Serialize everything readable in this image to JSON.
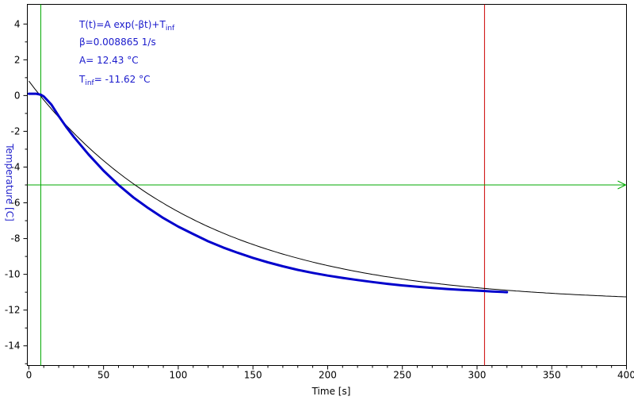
{
  "chart_data": {
    "type": "line",
    "xlabel": "Time [s]",
    "ylabel": "Temperature [C]",
    "xlim": [
      -1,
      400
    ],
    "ylim": [
      -15.1,
      5.1
    ],
    "xticks": [
      0,
      50,
      100,
      150,
      200,
      250,
      300,
      350,
      400
    ],
    "yticks": [
      4,
      2,
      0,
      -2,
      -4,
      -6,
      -8,
      -10,
      -12,
      -14
    ],
    "grid": false,
    "annotations": {
      "equation_main": "T(t)=A exp(-βt)+T",
      "equation_sub": "inf",
      "beta": "β=0.008865 1/s",
      "amplitude": "A= 12.43 °C",
      "tinf_label": "T",
      "tinf_sub": "inf",
      "tinf_value": "= -11.62 °C"
    },
    "fit_model": {
      "A": 12.43,
      "beta": 0.008865,
      "T_inf": -11.62,
      "t_start": 0,
      "t_end": 400
    },
    "series": [
      {
        "color": "#0000cc",
        "x": [
          0,
          5,
          8,
          10,
          15,
          20,
          25,
          30,
          40,
          50,
          60,
          70,
          80,
          90,
          100,
          110,
          120,
          130,
          140,
          150,
          160,
          170,
          180,
          190,
          200,
          210,
          220,
          230,
          240,
          250,
          260,
          270,
          280,
          290,
          300,
          305,
          310,
          320
        ],
        "y": [
          0.1,
          0.1,
          0.05,
          -0.05,
          -0.5,
          -1.15,
          -1.75,
          -2.3,
          -3.3,
          -4.2,
          -5.0,
          -5.7,
          -6.3,
          -6.85,
          -7.33,
          -7.75,
          -8.15,
          -8.5,
          -8.8,
          -9.08,
          -9.33,
          -9.55,
          -9.75,
          -9.92,
          -10.07,
          -10.2,
          -10.32,
          -10.43,
          -10.53,
          -10.62,
          -10.69,
          -10.76,
          -10.82,
          -10.87,
          -10.91,
          -10.93,
          -10.96,
          -11.0
        ]
      }
    ],
    "cursors": {
      "green_vertical_x": 8,
      "red_vertical_x": 305,
      "green_horizontal_y": -5
    },
    "colors": {
      "fit": "#000000",
      "data": "#0000cc",
      "green_cursor": "#00aa00",
      "red_cursor": "#cc0000",
      "ylabel": "#2222cc",
      "annotation": "#1a1acc"
    }
  }
}
